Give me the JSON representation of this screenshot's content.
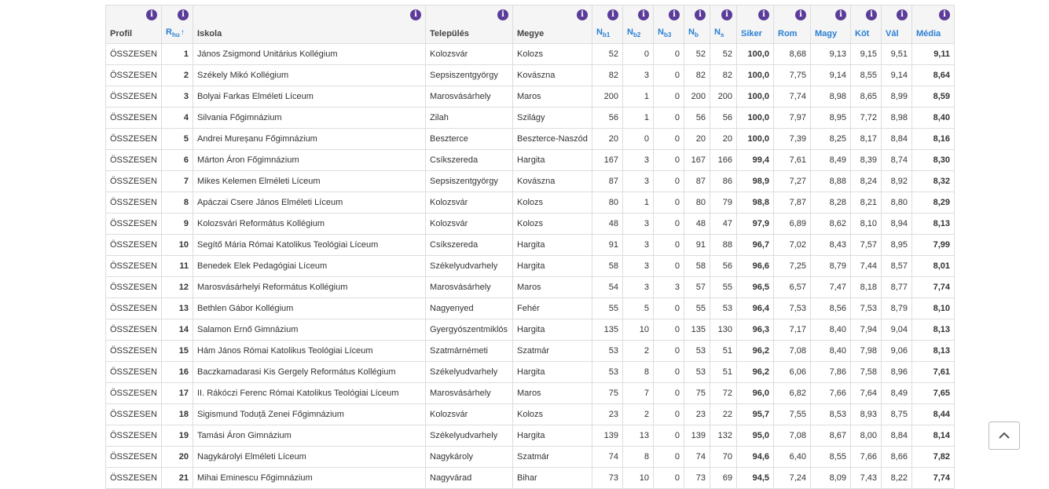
{
  "columns": [
    {
      "label": "Profil",
      "sub": "",
      "sortable": false
    },
    {
      "label": "R",
      "sub": "hu",
      "sortable": true,
      "sort_indicator": "↑"
    },
    {
      "label": "Iskola",
      "sub": "",
      "sortable": false
    },
    {
      "label": "Település",
      "sub": "",
      "sortable": false
    },
    {
      "label": "Megye",
      "sub": "",
      "sortable": false
    },
    {
      "label": "N",
      "sub": "b1",
      "sortable": true
    },
    {
      "label": "N",
      "sub": "b2",
      "sortable": true
    },
    {
      "label": "N",
      "sub": "b3",
      "sortable": true
    },
    {
      "label": "N",
      "sub": "b",
      "sortable": true
    },
    {
      "label": "N",
      "sub": "s",
      "sortable": true
    },
    {
      "label": "Siker",
      "sub": "",
      "sortable": true
    },
    {
      "label": "Rom",
      "sub": "",
      "sortable": true
    },
    {
      "label": "Magy",
      "sub": "",
      "sortable": true
    },
    {
      "label": "Köt",
      "sub": "",
      "sortable": true
    },
    {
      "label": "Vál",
      "sub": "",
      "sortable": true
    },
    {
      "label": "Média",
      "sub": "",
      "sortable": true
    }
  ],
  "info_glyph": "i",
  "rows": [
    [
      "ÖSSZESEN",
      "1",
      "János Zsigmond Unitárius Kollégium",
      "Kolozsvár",
      "Kolozs",
      "52",
      "0",
      "0",
      "52",
      "52",
      "100,0",
      "8,68",
      "9,13",
      "9,15",
      "9,51",
      "9,11"
    ],
    [
      "ÖSSZESEN",
      "2",
      "Székely Mikó Kollégium",
      "Sepsiszentgyörgy",
      "Kovászna",
      "82",
      "3",
      "0",
      "82",
      "82",
      "100,0",
      "7,75",
      "9,14",
      "8,55",
      "9,14",
      "8,64"
    ],
    [
      "ÖSSZESEN",
      "3",
      "Bolyai Farkas Elméleti Líceum",
      "Marosvásárhely",
      "Maros",
      "200",
      "1",
      "0",
      "200",
      "200",
      "100,0",
      "7,74",
      "8,98",
      "8,65",
      "8,99",
      "8,59"
    ],
    [
      "ÖSSZESEN",
      "4",
      "Silvania Főgimnázium",
      "Zilah",
      "Szilágy",
      "56",
      "1",
      "0",
      "56",
      "56",
      "100,0",
      "7,97",
      "8,95",
      "7,72",
      "8,98",
      "8,40"
    ],
    [
      "ÖSSZESEN",
      "5",
      "Andrei Mureșanu Főgimnázium",
      "Beszterce",
      "Beszterce-Naszód",
      "20",
      "0",
      "0",
      "20",
      "20",
      "100,0",
      "7,39",
      "8,25",
      "8,17",
      "8,84",
      "8,16"
    ],
    [
      "ÖSSZESEN",
      "6",
      "Márton Áron Főgimnázium",
      "Csíkszereda",
      "Hargita",
      "167",
      "3",
      "0",
      "167",
      "166",
      "99,4",
      "7,61",
      "8,49",
      "8,39",
      "8,74",
      "8,30"
    ],
    [
      "ÖSSZESEN",
      "7",
      "Mikes Kelemen Elméleti Líceum",
      "Sepsiszentgyörgy",
      "Kovászna",
      "87",
      "3",
      "0",
      "87",
      "86",
      "98,9",
      "7,27",
      "8,88",
      "8,24",
      "8,92",
      "8,32"
    ],
    [
      "ÖSSZESEN",
      "8",
      "Apáczai Csere János Elméleti Líceum",
      "Kolozsvár",
      "Kolozs",
      "80",
      "1",
      "0",
      "80",
      "79",
      "98,8",
      "7,87",
      "8,28",
      "8,21",
      "8,80",
      "8,29"
    ],
    [
      "ÖSSZESEN",
      "9",
      "Kolozsvári Református Kollégium",
      "Kolozsvár",
      "Kolozs",
      "48",
      "3",
      "0",
      "48",
      "47",
      "97,9",
      "6,89",
      "8,62",
      "8,10",
      "8,94",
      "8,13"
    ],
    [
      "ÖSSZESEN",
      "10",
      "Segítő Mária Római Katolikus Teológiai Líceum",
      "Csíkszereda",
      "Hargita",
      "91",
      "3",
      "0",
      "91",
      "88",
      "96,7",
      "7,02",
      "8,43",
      "7,57",
      "8,95",
      "7,99"
    ],
    [
      "ÖSSZESEN",
      "11",
      "Benedek Elek Pedagógiai Líceum",
      "Székelyudvarhely",
      "Hargita",
      "58",
      "3",
      "0",
      "58",
      "56",
      "96,6",
      "7,25",
      "8,79",
      "7,44",
      "8,57",
      "8,01"
    ],
    [
      "ÖSSZESEN",
      "12",
      "Marosvásárhelyi Református Kollégium",
      "Marosvásárhely",
      "Maros",
      "54",
      "3",
      "3",
      "57",
      "55",
      "96,5",
      "6,57",
      "7,47",
      "8,18",
      "8,77",
      "7,74"
    ],
    [
      "ÖSSZESEN",
      "13",
      "Bethlen Gábor Kollégium",
      "Nagyenyed",
      "Fehér",
      "55",
      "5",
      "0",
      "55",
      "53",
      "96,4",
      "7,53",
      "8,56",
      "7,53",
      "8,79",
      "8,10"
    ],
    [
      "ÖSSZESEN",
      "14",
      "Salamon Ernő Gimnázium",
      "Gyergyószentmiklós",
      "Hargita",
      "135",
      "10",
      "0",
      "135",
      "130",
      "96,3",
      "7,17",
      "8,40",
      "7,94",
      "9,04",
      "8,13"
    ],
    [
      "ÖSSZESEN",
      "15",
      "Hám János Római Katolikus Teológiai Líceum",
      "Szatmárnémeti",
      "Szatmár",
      "53",
      "2",
      "0",
      "53",
      "51",
      "96,2",
      "7,08",
      "8,40",
      "7,98",
      "9,06",
      "8,13"
    ],
    [
      "ÖSSZESEN",
      "16",
      "Baczkamadarasi Kis Gergely Református Kollégium",
      "Székelyudvarhely",
      "Hargita",
      "53",
      "8",
      "0",
      "53",
      "51",
      "96,2",
      "6,06",
      "7,86",
      "7,58",
      "8,96",
      "7,61"
    ],
    [
      "ÖSSZESEN",
      "17",
      "II. Rákóczi Ferenc Római Katolikus Teológiai Líceum",
      "Marosvásárhely",
      "Maros",
      "75",
      "7",
      "0",
      "75",
      "72",
      "96,0",
      "6,82",
      "7,66",
      "7,64",
      "8,49",
      "7,65"
    ],
    [
      "ÖSSZESEN",
      "18",
      "Sigismund Toduță Zenei Főgimnázium",
      "Kolozsvár",
      "Kolozs",
      "23",
      "2",
      "0",
      "23",
      "22",
      "95,7",
      "7,55",
      "8,53",
      "8,93",
      "8,75",
      "8,44"
    ],
    [
      "ÖSSZESEN",
      "19",
      "Tamási Áron Gimnázium",
      "Székelyudvarhely",
      "Hargita",
      "139",
      "13",
      "0",
      "139",
      "132",
      "95,0",
      "7,08",
      "8,67",
      "8,00",
      "8,84",
      "8,14"
    ],
    [
      "ÖSSZESEN",
      "20",
      "Nagykárolyi Elméleti Líceum",
      "Nagykároly",
      "Szatmár",
      "74",
      "8",
      "0",
      "74",
      "70",
      "94,6",
      "6,40",
      "8,55",
      "7,66",
      "8,66",
      "7,82"
    ],
    [
      "ÖSSZESEN",
      "21",
      "Mihai Eminescu Főgimnázium",
      "Nagyvárad",
      "Bihar",
      "73",
      "10",
      "0",
      "73",
      "69",
      "94,5",
      "7,24",
      "8,09",
      "7,43",
      "8,22",
      "7,74"
    ]
  ],
  "colors": {
    "header_link": "#2a7fd4",
    "info_badge": "#5b3c99",
    "border": "#dddddd",
    "header_bg": "#f5f5f5"
  },
  "icons": {
    "info": "info-icon",
    "back_to_top": "chevron-up-icon"
  }
}
